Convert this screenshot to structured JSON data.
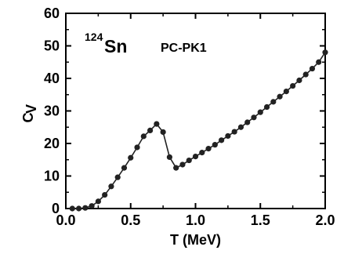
{
  "chart_data": {
    "type": "line",
    "xlabel": "T (MeV)",
    "ylabel_main": "C",
    "ylabel_sub": "V",
    "xlim": [
      0.0,
      2.0
    ],
    "ylim": [
      0,
      60
    ],
    "x_ticks": [
      "0.0",
      "0.5",
      "1.0",
      "1.5",
      "2.0"
    ],
    "y_ticks": [
      "0",
      "10",
      "20",
      "30",
      "40",
      "50",
      "60"
    ],
    "grid": false,
    "legend": "none",
    "annotations": {
      "isotope_mass": "124",
      "isotope_symbol": "Sn",
      "model": "PC-PK1"
    },
    "series": [
      {
        "marker": "filled-circle",
        "color": "#222222",
        "x": [
          0.05,
          0.1,
          0.15,
          0.2,
          0.25,
          0.3,
          0.35,
          0.4,
          0.45,
          0.5,
          0.55,
          0.6,
          0.65,
          0.7,
          0.75,
          0.8,
          0.85,
          0.9,
          0.95,
          1.0,
          1.05,
          1.1,
          1.15,
          1.2,
          1.25,
          1.3,
          1.35,
          1.4,
          1.45,
          1.5,
          1.55,
          1.6,
          1.65,
          1.7,
          1.75,
          1.8,
          1.85,
          1.9,
          1.95,
          2.0
        ],
        "y": [
          0.0,
          0.0,
          0.2,
          0.8,
          2.2,
          4.2,
          6.8,
          9.6,
          12.5,
          15.6,
          18.8,
          22.2,
          24.0,
          26.0,
          23.5,
          15.8,
          12.5,
          13.5,
          14.8,
          16.0,
          17.2,
          18.4,
          19.6,
          21.0,
          22.3,
          23.6,
          25.0,
          26.5,
          28.0,
          29.6,
          31.2,
          32.8,
          34.4,
          36.0,
          37.7,
          39.4,
          41.2,
          43.0,
          45.0,
          48.0
        ]
      }
    ]
  }
}
